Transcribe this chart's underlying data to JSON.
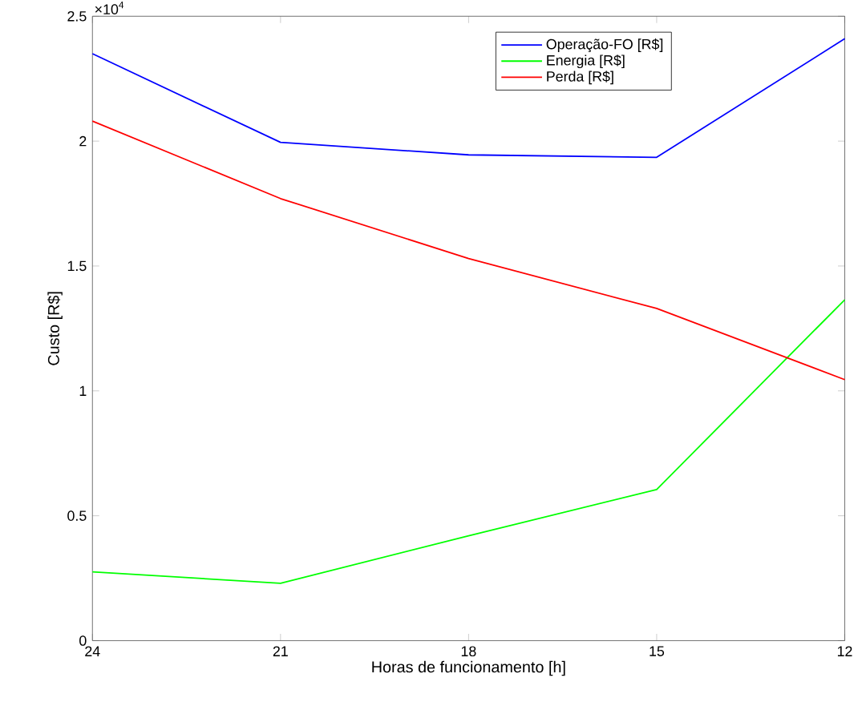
{
  "chart_data": {
    "type": "line",
    "xlabel": "Horas de funcionamento [h]",
    "ylabel": "Custo [R$]",
    "x": [
      24,
      21,
      18,
      15,
      12
    ],
    "series": [
      {
        "name": "Operação-FO [R$]",
        "color": "#0000ff",
        "values": [
          2.35,
          1.995,
          1.945,
          1.935,
          2.41
        ]
      },
      {
        "name": "Energia [R$]",
        "color": "#00ff00",
        "values": [
          0.275,
          0.23,
          0.42,
          0.605,
          1.365
        ]
      },
      {
        "name": "Perda [R$]",
        "color": "#ff0000",
        "values": [
          2.08,
          1.77,
          1.53,
          1.33,
          1.045
        ]
      }
    ],
    "xlim": [
      24,
      12
    ],
    "xticks": [
      24,
      21,
      18,
      15,
      12
    ],
    "ylim": [
      0,
      2.5
    ],
    "yticks": [
      0,
      0.5,
      1,
      1.5,
      2,
      2.5
    ],
    "annotations": [
      "×10$^{4}$"
    ],
    "legend": "top right",
    "grid": false,
    "marker": "none",
    "line_style": "solid"
  }
}
